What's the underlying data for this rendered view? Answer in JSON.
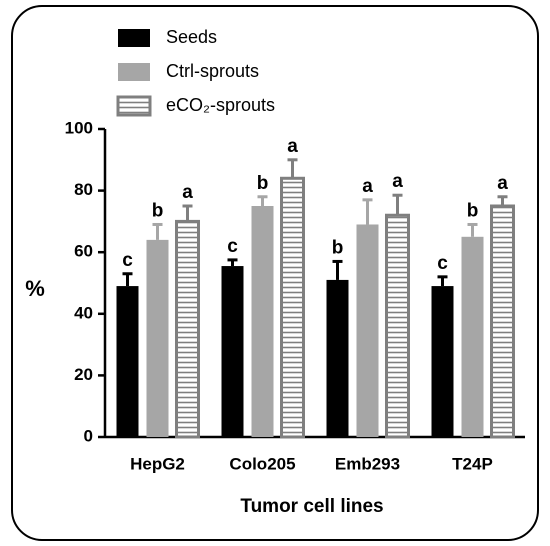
{
  "chart_data": {
    "type": "bar",
    "x_label": "Tumor cell lines",
    "y_label": "%",
    "categories": [
      "HepG2",
      "Colo205",
      "Emb293",
      "T24P"
    ],
    "series": [
      {
        "name": "Seeds",
        "color": "#000000",
        "hatch": false,
        "values": [
          49,
          55.5,
          51,
          49
        ],
        "errors": [
          4,
          2,
          6,
          3
        ],
        "letters": [
          "c",
          "c",
          "b",
          "c"
        ]
      },
      {
        "name": "Ctrl-sprouts",
        "color": "#a6a6a6",
        "hatch": false,
        "values": [
          64,
          75,
          69,
          65
        ],
        "errors": [
          5,
          3,
          8,
          4
        ],
        "letters": [
          "b",
          "b",
          "a",
          "b"
        ]
      },
      {
        "name": "eCO₂-sprouts",
        "color": "#7f7f7f",
        "hatch": true,
        "values": [
          70,
          84,
          72,
          75
        ],
        "errors": [
          5,
          6,
          6.5,
          3
        ],
        "letters": [
          "a",
          "a",
          "a",
          "a"
        ]
      }
    ],
    "ylim": [
      0,
      100
    ],
    "yticks": [
      0,
      20,
      40,
      60,
      80,
      100
    ]
  }
}
